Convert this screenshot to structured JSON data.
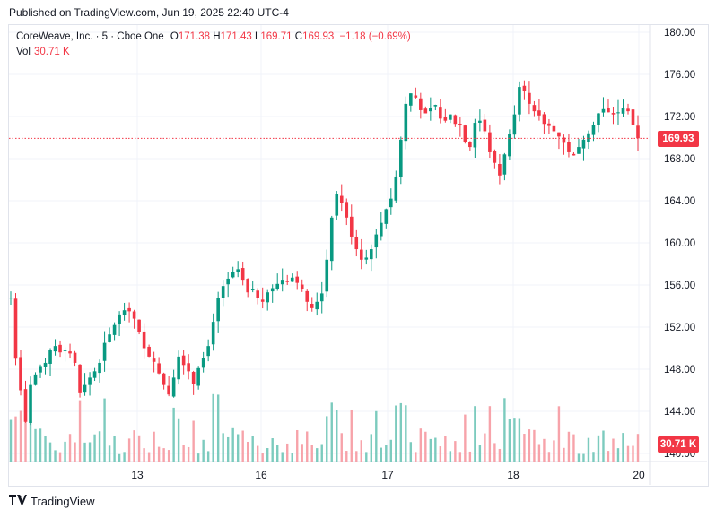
{
  "published": "Published on TradingView.com, Jun 19, 2025 22:40 UTC-4",
  "legend": {
    "symbol": "CoreWeave, Inc. · 5 · Cboe One",
    "o_label": "O",
    "o_value": "171.38",
    "h_label": "H",
    "h_value": "171.43",
    "l_label": "L",
    "l_value": "169.71",
    "c_label": "C",
    "c_value": "169.93",
    "change": "−1.18 (−0.69%)",
    "vol_label": "Vol",
    "vol_value": "30.71 K"
  },
  "last_price_label": "169.93",
  "last_volume_label": "30.71 K",
  "footer": {
    "brand": "TradingView"
  },
  "colors": {
    "up": "#089981",
    "down": "#f23645",
    "vol_up": "#7ccbbe",
    "vol_down": "#f7a3aa",
    "grid": "#f0f3fa"
  },
  "chart_data": {
    "type": "candlestick",
    "y_ticks": [
      "180.00",
      "176.00",
      "172.00",
      "168.00",
      "164.00",
      "160.00",
      "156.00",
      "152.00",
      "148.00",
      "144.00",
      "140.00"
    ],
    "ylim": [
      140,
      180
    ],
    "x_ticks": [
      "13",
      "16",
      "17",
      "18",
      "20"
    ],
    "current_price": 169.93,
    "path": [
      [
        "12",
        154.8
      ],
      [
        "12",
        149
      ],
      [
        "12",
        146
      ],
      [
        "12",
        143
      ],
      [
        "12",
        146.5
      ],
      [
        "12",
        147.5
      ],
      [
        "12",
        148.3
      ],
      [
        "12",
        148.6
      ],
      [
        "12",
        149.8
      ],
      [
        "12",
        150.2
      ],
      [
        "12",
        149.6
      ],
      [
        "12",
        149.8
      ],
      [
        "13",
        149.5
      ],
      [
        "13",
        148.6
      ],
      [
        "13",
        145.8
      ],
      [
        "13",
        146.5
      ],
      [
        "13",
        147.2
      ],
      [
        "13",
        147.8
      ],
      [
        "13",
        148.6
      ],
      [
        "13",
        150.5
      ],
      [
        "13",
        151.3
      ],
      [
        "13",
        152.2
      ],
      [
        "13",
        153.2
      ],
      [
        "13",
        153.6
      ],
      [
        "13",
        153.5
      ],
      [
        "13",
        152.8
      ],
      [
        "13",
        151.5
      ],
      [
        "13",
        150
      ],
      [
        "13",
        149.2
      ],
      [
        "13",
        148.7
      ],
      [
        "13",
        147.6
      ],
      [
        "13",
        146.5
      ],
      [
        "13",
        145.6
      ],
      [
        "13",
        147.2
      ],
      [
        "13",
        149.2
      ],
      [
        "13",
        148.4
      ],
      [
        "13",
        147.8
      ],
      [
        "16",
        146.6
      ],
      [
        "16",
        148.1
      ],
      [
        "16",
        149.1
      ],
      [
        "16",
        150.2
      ],
      [
        "16",
        152.5
      ],
      [
        "16",
        154.8
      ],
      [
        "16",
        155.9
      ],
      [
        "16",
        156.6
      ],
      [
        "16",
        157.2
      ],
      [
        "16",
        157.5
      ],
      [
        "16",
        156.5
      ],
      [
        "16",
        155.3
      ],
      [
        "16",
        155.6
      ],
      [
        "16",
        154.8
      ],
      [
        "16",
        154.4
      ],
      [
        "16",
        155.3
      ],
      [
        "16",
        155.7
      ],
      [
        "16",
        156.1
      ],
      [
        "16",
        156.5
      ],
      [
        "16",
        156.3
      ],
      [
        "16",
        156.7
      ],
      [
        "16",
        156.2
      ],
      [
        "16",
        155.6
      ],
      [
        "16",
        154.4
      ],
      [
        "16",
        153.8
      ],
      [
        "16",
        154.4
      ],
      [
        "16",
        155.2
      ],
      [
        "17",
        158.4
      ],
      [
        "17",
        162.4
      ],
      [
        "17",
        164.6
      ],
      [
        "17",
        163.8
      ],
      [
        "17",
        162.4
      ],
      [
        "17",
        160.6
      ],
      [
        "17",
        159.4
      ],
      [
        "17",
        158.4
      ],
      [
        "17",
        158.6
      ],
      [
        "17",
        159.4
      ],
      [
        "17",
        160.8
      ],
      [
        "17",
        161.9
      ],
      [
        "17",
        163.2
      ],
      [
        "17",
        164.2
      ],
      [
        "17",
        166.3
      ],
      [
        "17",
        169.8
      ],
      [
        "17",
        173.2
      ],
      [
        "17",
        174.2
      ],
      [
        "17",
        173.8
      ],
      [
        "17",
        172.6
      ],
      [
        "17",
        172.3
      ],
      [
        "17",
        172.8
      ],
      [
        "17",
        173.1
      ],
      [
        "17",
        171.8
      ],
      [
        "17",
        171.6
      ],
      [
        "17",
        172.2
      ],
      [
        "17",
        171.3
      ],
      [
        "17",
        171.2
      ],
      [
        "18",
        169.6
      ],
      [
        "18",
        169.1
      ],
      [
        "18",
        171.4
      ],
      [
        "18",
        171.6
      ],
      [
        "18",
        170.6
      ],
      [
        "18",
        168.6
      ],
      [
        "18",
        167.6
      ],
      [
        "18",
        166.4
      ],
      [
        "18",
        168.4
      ],
      [
        "18",
        170.3
      ],
      [
        "18",
        172.2
      ],
      [
        "18",
        174.8
      ],
      [
        "18",
        174.4
      ],
      [
        "18",
        173.2
      ],
      [
        "18",
        172.5
      ],
      [
        "18",
        172.1
      ],
      [
        "18",
        171.3
      ],
      [
        "18",
        171.1
      ],
      [
        "18",
        170.6
      ],
      [
        "18",
        170.1
      ],
      [
        "18",
        169.5
      ],
      [
        "18",
        168.6
      ],
      [
        "18",
        168.3
      ],
      [
        "18",
        169.1
      ],
      [
        "18",
        169.8
      ],
      [
        "18",
        170.4
      ],
      [
        "18",
        171.2
      ],
      [
        "18",
        172.3
      ],
      [
        "18",
        172.7
      ],
      [
        "18",
        172.4
      ],
      [
        "18",
        172.2
      ],
      [
        "18",
        172.4
      ],
      [
        "18",
        172.8
      ],
      [
        "18",
        172.5
      ],
      [
        "18",
        171.2
      ],
      [
        "18",
        169.93
      ]
    ]
  }
}
